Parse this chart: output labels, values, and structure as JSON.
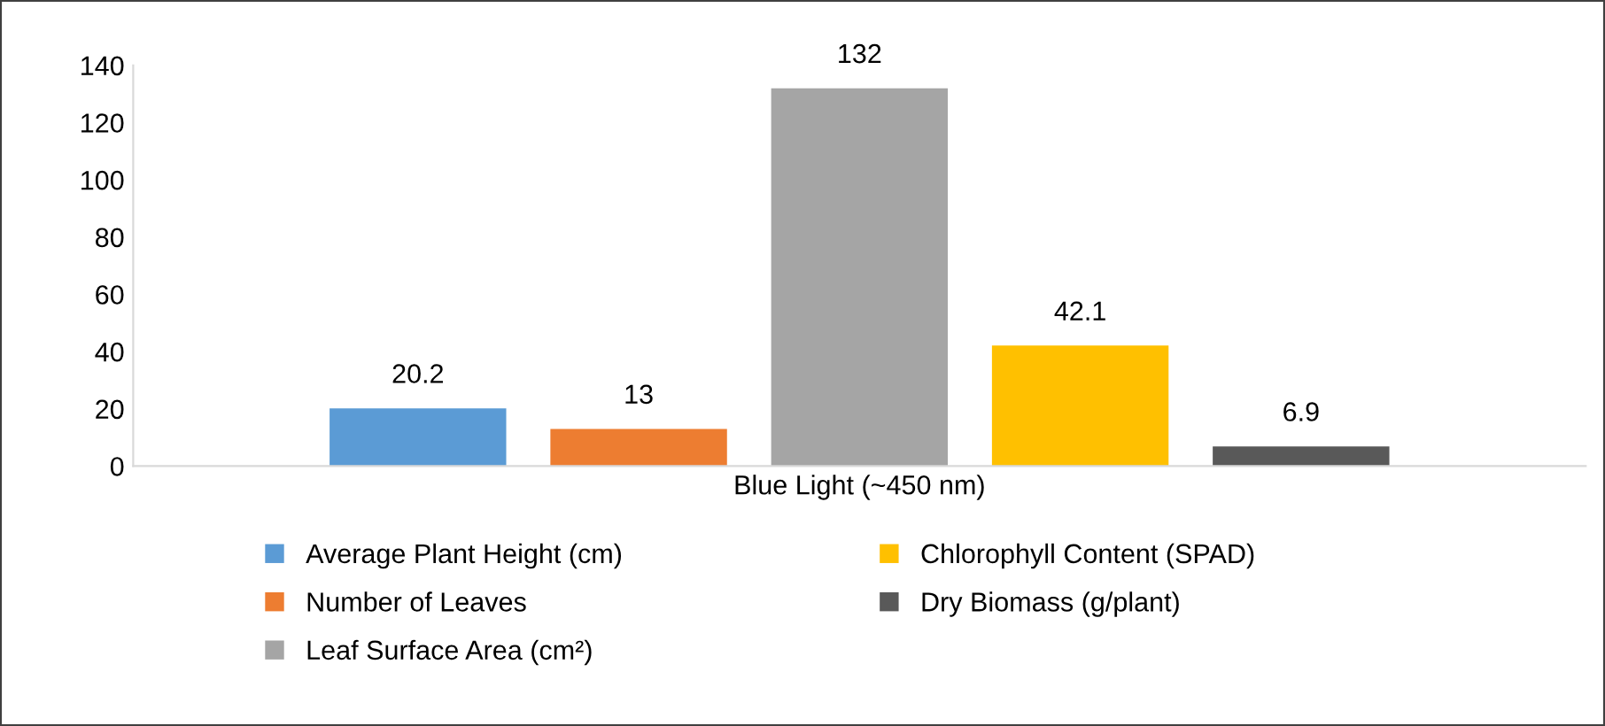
{
  "chart_data": {
    "type": "bar",
    "categories": [
      "Blue Light (~450 nm)"
    ],
    "series": [
      {
        "name": "Average Plant Height (cm)",
        "color": "#5b9bd5",
        "values": [
          20.2
        ]
      },
      {
        "name": "Number of Leaves",
        "color": "#ed7d31",
        "values": [
          13
        ]
      },
      {
        "name": "Leaf Surface Area (cm²)",
        "color": "#a5a5a5",
        "values": [
          132
        ]
      },
      {
        "name": "Chlorophyll Content (SPAD)",
        "color": "#ffc000",
        "values": [
          42.1
        ]
      },
      {
        "name": "Dry Biomass (g/plant)",
        "color": "#595959",
        "values": [
          6.9
        ]
      }
    ],
    "ylim": [
      0,
      140
    ],
    "yticks": [
      0,
      20,
      40,
      60,
      80,
      100,
      120,
      140
    ],
    "data_labels": true,
    "grid": false,
    "legend": "bottom"
  }
}
